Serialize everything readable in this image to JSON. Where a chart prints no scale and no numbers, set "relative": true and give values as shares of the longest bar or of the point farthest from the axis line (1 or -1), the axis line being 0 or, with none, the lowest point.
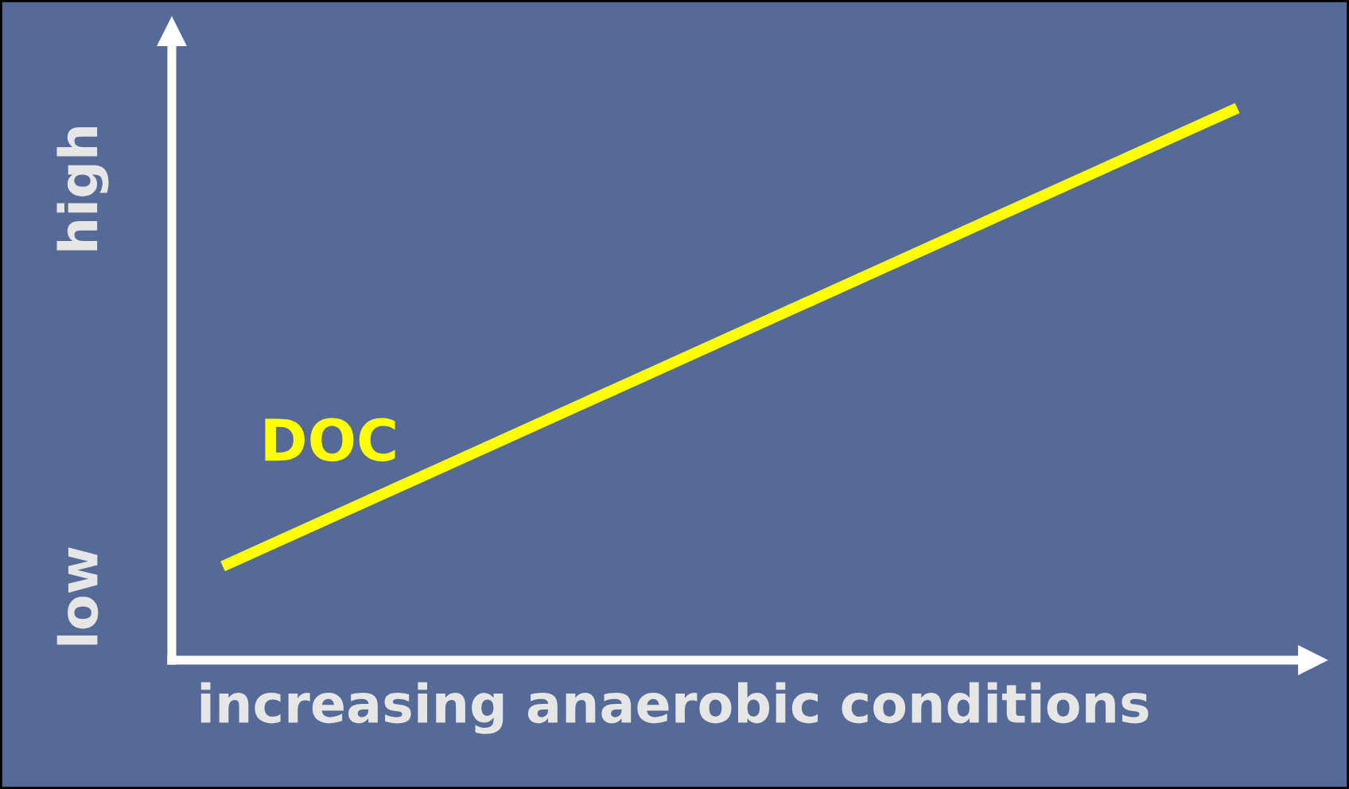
{
  "chart_data": {
    "type": "line",
    "relative": true,
    "xlabel": "increasing anaerobic conditions",
    "categories": [
      null,
      null
    ],
    "series": [
      {
        "name": "DOC",
        "color": "#ffff00",
        "values": [
          0.17,
          1
        ]
      }
    ],
    "annotations": [
      "low",
      "high"
    ],
    "legend": false,
    "marker": "none",
    "line_style": "solid"
  }
}
